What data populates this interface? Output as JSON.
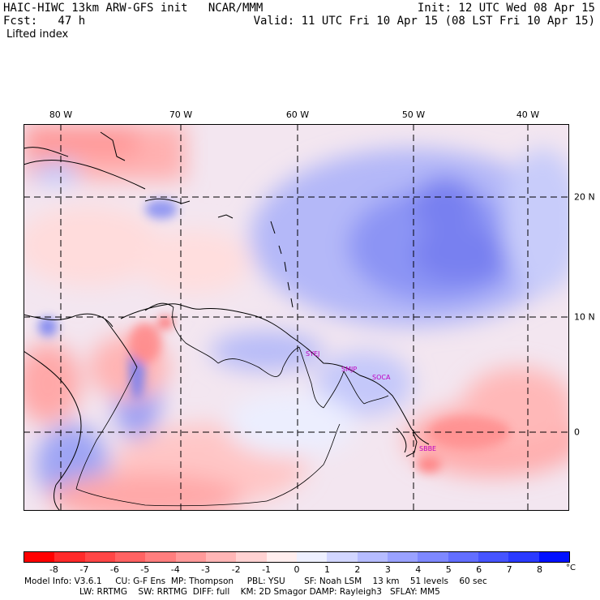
{
  "header": {
    "title": "HAIC-HIWC 13km ARW-GFS init   NCAR/MMM",
    "fcst": "Fcst:   47 h",
    "field": "Lifted index",
    "init": "Init: 12 UTC Wed 08 Apr 15",
    "valid": "Valid: 11 UTC Fri 10 Apr 15 (08 LST Fri 10 Apr 15)"
  },
  "axes": {
    "lon_labels": [
      "80 W",
      "70 W",
      "60 W",
      "50 W",
      "40 W"
    ],
    "lat_labels": [
      "20 N",
      "10 N",
      "0"
    ]
  },
  "stations": [
    "SYEJ",
    "SMJP",
    "SOCA",
    "SBBE"
  ],
  "colorbar": {
    "labels": [
      "-8",
      "-7",
      "-6",
      "-5",
      "-4",
      "-3",
      "-2",
      "-1",
      "0",
      "1",
      "2",
      "3",
      "4",
      "5",
      "6",
      "7",
      "8"
    ],
    "unit": "°C",
    "colors": [
      "#ff0000",
      "#ff2a2a",
      "#ff4646",
      "#ff6262",
      "#ff7e7e",
      "#ff9a9a",
      "#ffb6b6",
      "#ffd2d2",
      "#ffeeee",
      "#eef0ff",
      "#d2d6ff",
      "#b6bcff",
      "#9aa2ff",
      "#7e88ff",
      "#626eff",
      "#4654ff",
      "#2a3aff",
      "#0010ff"
    ]
  },
  "footer": {
    "line1": "Model Info: V3.6.1     CU: G-F Ens  MP: Thompson     PBL: YSU       SF: Noah LSM    13 km    51 levels    60 sec",
    "line2": "LW: RRTMG    SW: RRTMG  DIFF: full    KM: 2D Smagor DAMP: Rayleigh3   SFLAY: MM5"
  }
}
